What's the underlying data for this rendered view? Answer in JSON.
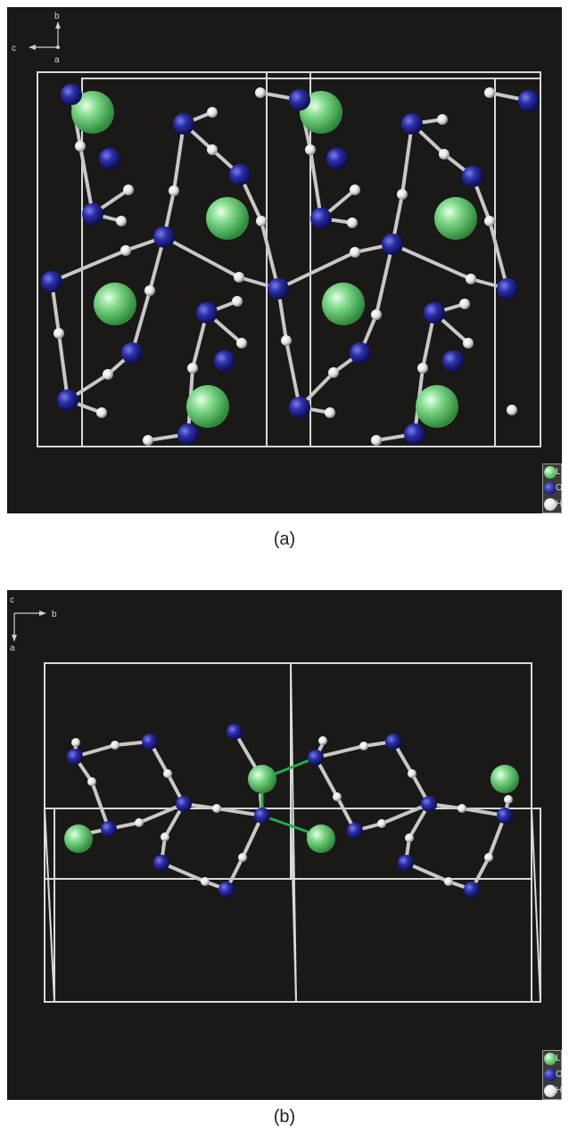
{
  "panels": {
    "a": {
      "caption": "(a)",
      "axes": {
        "up": "b",
        "left": "c",
        "center": "a"
      }
    },
    "b": {
      "caption": "(b)",
      "axes": {
        "top": "c",
        "right": "b",
        "down": "a"
      }
    }
  },
  "legend": [
    {
      "label": "L",
      "color": "#6fd07a"
    },
    {
      "label": "O",
      "color": "#2c2fa0"
    },
    {
      "label": "H",
      "color": "#f2f2f2"
    }
  ]
}
